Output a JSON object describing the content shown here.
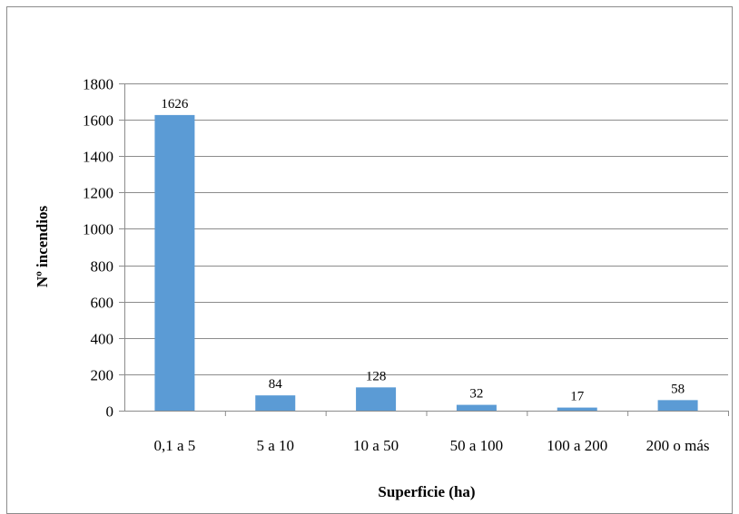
{
  "chart_data": {
    "type": "bar",
    "title": "",
    "xlabel": "Superficie (ha)",
    "ylabel": "Nº incendios",
    "categories": [
      "0,1 a 5",
      "5 a 10",
      "10 a 50",
      "50 a 100",
      "100 a 200",
      "200 o más"
    ],
    "values": [
      1626,
      84,
      128,
      32,
      17,
      58
    ],
    "data_labels": [
      "1626",
      "84",
      "128",
      "32",
      "17",
      "58"
    ],
    "ylim": [
      0,
      1800
    ],
    "yticks": [
      0,
      200,
      400,
      600,
      800,
      1000,
      1200,
      1400,
      1600,
      1800
    ],
    "grid": true,
    "legend": "none",
    "bar_color": "#5b9bd5",
    "grid_color": "#8c8c8c"
  }
}
